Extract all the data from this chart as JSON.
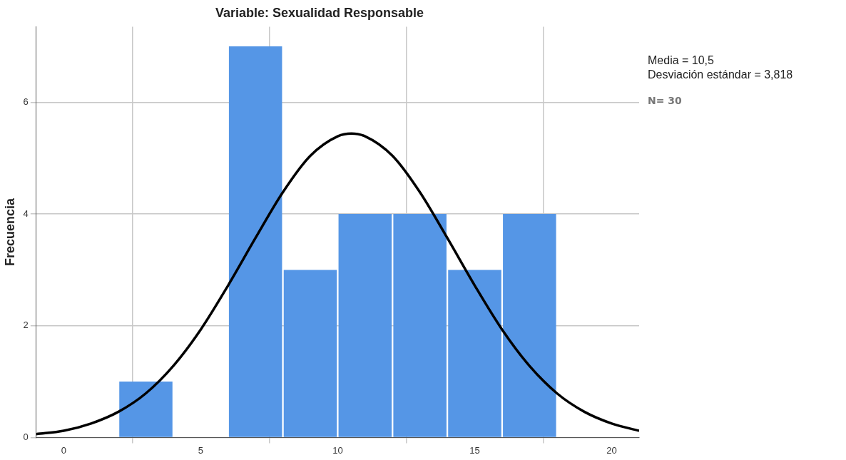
{
  "chart_data": {
    "type": "histogram",
    "title": "Variable: Sexualidad Responsable",
    "ylabel": "Frecuencia",
    "bins": [
      2,
      4,
      6,
      8,
      10,
      12,
      14,
      16,
      18
    ],
    "values": [
      1,
      0,
      7,
      3,
      4,
      4,
      3,
      4
    ],
    "color": "#5596e6",
    "series": [
      {
        "type": "line",
        "color": "#000000",
        "x": [
          -1,
          0,
          1,
          2,
          3,
          4,
          5,
          6,
          7,
          8,
          9,
          10,
          10.5,
          11,
          12,
          13,
          14,
          15,
          16,
          17,
          18,
          19,
          20,
          21
        ],
        "values": [
          0.06,
          0.12,
          0.25,
          0.46,
          0.79,
          1.28,
          1.93,
          2.72,
          3.57,
          4.39,
          5.04,
          5.39,
          5.44,
          5.39,
          5.04,
          4.39,
          3.57,
          2.72,
          1.93,
          1.28,
          0.79,
          0.46,
          0.25,
          0.12
        ]
      }
    ],
    "xlim": [
      -1,
      21
    ],
    "xticks": [
      0,
      5,
      10,
      15,
      20
    ],
    "ylim": [
      0,
      7.35
    ],
    "yticks": [
      0,
      2,
      4,
      6
    ],
    "grid": true,
    "legend": false,
    "marker": "none",
    "line_style": "solid",
    "annotations": [
      "Media = 10,5",
      "Desviación estándar = 3,818",
      "N= 30"
    ]
  }
}
